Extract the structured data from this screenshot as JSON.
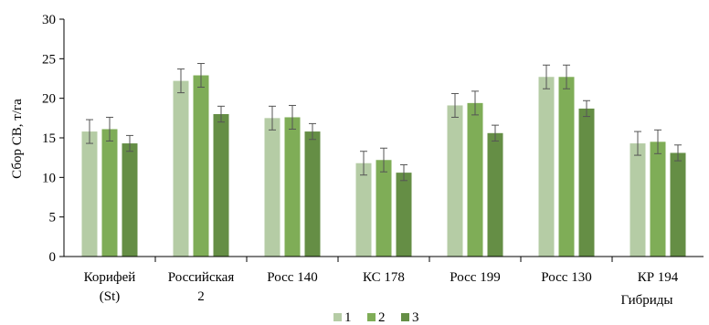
{
  "chart_data": {
    "type": "bar",
    "ylabel": "Сбор СВ, т/га",
    "xlabel": "Гибриды",
    "ylim": [
      0,
      30
    ],
    "yticks": [
      0,
      5,
      10,
      15,
      20,
      25,
      30
    ],
    "grid": false,
    "legend_position": "bottom",
    "categories": [
      [
        "Корифей",
        "(St)"
      ],
      [
        "Российская",
        "2"
      ],
      [
        "Росс 140"
      ],
      [
        "КС 178"
      ],
      [
        "Росс 199"
      ],
      [
        "Росс 130"
      ],
      [
        "КР 194"
      ]
    ],
    "series": [
      {
        "name": "1",
        "color": "#b5cca5",
        "values": [
          15.8,
          22.2,
          17.5,
          11.8,
          19.1,
          22.7,
          14.3
        ],
        "errors": [
          1.5,
          1.5,
          1.5,
          1.5,
          1.5,
          1.5,
          1.5
        ]
      },
      {
        "name": "2",
        "color": "#7fad57",
        "values": [
          16.1,
          22.9,
          17.6,
          12.2,
          19.4,
          22.7,
          14.5
        ],
        "errors": [
          1.5,
          1.5,
          1.5,
          1.5,
          1.5,
          1.5,
          1.5
        ]
      },
      {
        "name": "3",
        "color": "#658e45",
        "values": [
          14.3,
          18.0,
          15.8,
          10.6,
          15.6,
          18.7,
          13.1
        ],
        "errors": [
          1.0,
          1.0,
          1.0,
          1.0,
          1.0,
          1.0,
          1.0
        ]
      }
    ]
  }
}
